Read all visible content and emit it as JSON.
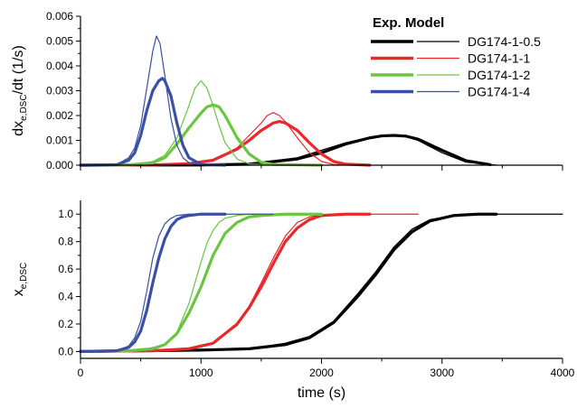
{
  "chart_data": [
    {
      "type": "line",
      "panel": "top",
      "ylabel": "dx",
      "ylabel_sub": "e,DSC",
      "ylabel_rest": "/dt (1/s)",
      "xlim": [
        0,
        4000
      ],
      "ylim": [
        0,
        0.006
      ],
      "yticks": [
        "0.000",
        "0.001",
        "0.002",
        "0.003",
        "0.004",
        "0.005",
        "0.006"
      ],
      "grid": false,
      "legend": {
        "placement": "top-right",
        "header_exp": "Exp.",
        "header_model": "Model",
        "entries": [
          "DG174-1-0.5",
          "DG174-1-1",
          "DG174-1-2",
          "DG174-1-4"
        ]
      },
      "series": [
        {
          "name": "DG174-1-0.5",
          "color": "#000000",
          "kind": "Exp.",
          "x": [
            0,
            1000,
            1400,
            1800,
            2000,
            2200,
            2400,
            2500,
            2600,
            2700,
            2800,
            3000,
            3200,
            3400
          ],
          "y": [
            0,
            1e-05,
            4e-05,
            0.00025,
            0.0005,
            0.00085,
            0.0011,
            0.00118,
            0.0012,
            0.00117,
            0.00105,
            0.0006,
            0.00018,
            2e-05
          ]
        },
        {
          "name": "DG174-1-0.5",
          "color": "#000000",
          "kind": "Model",
          "x": [
            0,
            1000,
            1400,
            1800,
            2000,
            2200,
            2400,
            2500,
            2600,
            2700,
            2800,
            3000,
            3200,
            3450
          ],
          "y": [
            0,
            1e-05,
            5e-05,
            0.0003,
            0.0006,
            0.0009,
            0.00113,
            0.00119,
            0.00121,
            0.00115,
            0.001,
            0.0005,
            0.00012,
            0
          ]
        },
        {
          "name": "DG174-1-1",
          "color": "#e8282b",
          "kind": "Exp.",
          "x": [
            0,
            600,
            900,
            1100,
            1300,
            1400,
            1500,
            1600,
            1650,
            1700,
            1800,
            1900,
            2000,
            2100,
            2200,
            2400
          ],
          "y": [
            0,
            1e-05,
            6e-05,
            0.0002,
            0.00065,
            0.001,
            0.0014,
            0.0017,
            0.00176,
            0.0017,
            0.0014,
            0.0009,
            0.00045,
            0.00015,
            4e-05,
            0
          ]
        },
        {
          "name": "DG174-1-1",
          "color": "#e8282b",
          "kind": "Model",
          "x": [
            0,
            600,
            900,
            1100,
            1300,
            1400,
            1500,
            1550,
            1600,
            1650,
            1700,
            1800,
            1900,
            2000,
            2100,
            2300
          ],
          "y": [
            0,
            1e-05,
            5e-05,
            0.0002,
            0.0007,
            0.0012,
            0.0017,
            0.002,
            0.00212,
            0.002,
            0.00175,
            0.0011,
            0.0005,
            0.00015,
            3e-05,
            0
          ]
        },
        {
          "name": "DG174-1-2",
          "color": "#6ac641",
          "kind": "Exp.",
          "x": [
            0,
            400,
            600,
            700,
            800,
            900,
            1000,
            1050,
            1100,
            1150,
            1200,
            1300,
            1400,
            1500,
            1600,
            2000
          ],
          "y": [
            0,
            1e-05,
            0.0001,
            0.0003,
            0.00085,
            0.0015,
            0.0021,
            0.00235,
            0.00243,
            0.00235,
            0.002,
            0.0011,
            0.00045,
            0.00012,
            3e-05,
            0
          ]
        },
        {
          "name": "DG174-1-2",
          "color": "#6ac641",
          "kind": "Model",
          "x": [
            0,
            500,
            600,
            700,
            800,
            900,
            950,
            1000,
            1050,
            1100,
            1150,
            1200,
            1300,
            1400,
            1600
          ],
          "y": [
            0,
            4e-05,
            0.00015,
            0.0004,
            0.0011,
            0.0024,
            0.0031,
            0.0034,
            0.0031,
            0.0024,
            0.0016,
            0.0009,
            0.00025,
            5e-05,
            0
          ]
        },
        {
          "name": "DG174-1-4",
          "color": "#3a4fa6",
          "kind": "Exp.",
          "x": [
            0,
            300,
            400,
            450,
            500,
            550,
            600,
            650,
            680,
            700,
            750,
            800,
            850,
            900,
            1000,
            1200
          ],
          "y": [
            0,
            2e-05,
            0.0002,
            0.0005,
            0.0012,
            0.0022,
            0.003,
            0.0034,
            0.0035,
            0.0034,
            0.0028,
            0.0017,
            0.0008,
            0.0003,
            3e-05,
            0
          ]
        },
        {
          "name": "DG174-1-4",
          "color": "#3a4fa6",
          "kind": "Model",
          "x": [
            0,
            300,
            400,
            450,
            500,
            550,
            600,
            630,
            660,
            700,
            750,
            800,
            850,
            900,
            1000,
            1200
          ],
          "y": [
            0,
            2e-05,
            0.0003,
            0.0007,
            0.0016,
            0.0031,
            0.0046,
            0.0052,
            0.0049,
            0.0036,
            0.0019,
            0.0008,
            0.0003,
            0.0001,
            1e-05,
            0
          ]
        }
      ]
    },
    {
      "type": "line",
      "panel": "bottom",
      "xlabel": "time (s)",
      "ylabel": "x",
      "ylabel_sub": "e,DSC",
      "xlim": [
        0,
        4000
      ],
      "ylim": [
        -0.05,
        1.1
      ],
      "xticks": [
        "0",
        "1000",
        "2000",
        "3000",
        "4000"
      ],
      "yticks": [
        "0.0",
        "0.2",
        "0.4",
        "0.6",
        "0.8",
        "1.0"
      ],
      "grid": false,
      "series": [
        {
          "name": "DG174-1-0.5",
          "color": "#000000",
          "kind": "Exp.",
          "x": [
            0,
            1000,
            1400,
            1700,
            1900,
            2100,
            2300,
            2450,
            2600,
            2750,
            2900,
            3100,
            3300,
            3450
          ],
          "y": [
            0,
            0.01,
            0.02,
            0.05,
            0.1,
            0.21,
            0.4,
            0.56,
            0.74,
            0.87,
            0.95,
            0.99,
            1,
            1
          ]
        },
        {
          "name": "DG174-1-0.5",
          "color": "#000000",
          "kind": "Model",
          "x": [
            0,
            1000,
            1400,
            1700,
            1900,
            2100,
            2300,
            2450,
            2600,
            2750,
            2900,
            3100,
            3300,
            3500,
            4000
          ],
          "y": [
            0,
            0.01,
            0.02,
            0.06,
            0.11,
            0.22,
            0.42,
            0.58,
            0.76,
            0.89,
            0.96,
            0.99,
            1,
            1,
            1
          ]
        },
        {
          "name": "DG174-1-1",
          "color": "#e8282b",
          "kind": "Exp.",
          "x": [
            0,
            600,
            900,
            1100,
            1300,
            1400,
            1500,
            1600,
            1700,
            1800,
            1900,
            2000,
            2200,
            2400
          ],
          "y": [
            0,
            0.005,
            0.02,
            0.06,
            0.2,
            0.32,
            0.47,
            0.64,
            0.8,
            0.9,
            0.96,
            0.99,
            1,
            1
          ]
        },
        {
          "name": "DG174-1-1",
          "color": "#e8282b",
          "kind": "Model",
          "x": [
            0,
            600,
            900,
            1100,
            1300,
            1400,
            1500,
            1600,
            1700,
            1800,
            1900,
            2000,
            2200,
            2800
          ],
          "y": [
            0,
            0.005,
            0.02,
            0.06,
            0.19,
            0.33,
            0.5,
            0.68,
            0.84,
            0.94,
            0.98,
            0.995,
            1,
            1
          ]
        },
        {
          "name": "DG174-1-2",
          "color": "#6ac641",
          "kind": "Exp.",
          "x": [
            0,
            400,
            600,
            700,
            800,
            900,
            1000,
            1100,
            1200,
            1300,
            1400,
            1500,
            1700,
            2000
          ],
          "y": [
            0,
            0.005,
            0.02,
            0.05,
            0.13,
            0.28,
            0.47,
            0.7,
            0.86,
            0.94,
            0.98,
            0.99,
            1,
            1
          ]
        },
        {
          "name": "DG174-1-2",
          "color": "#6ac641",
          "kind": "Model",
          "x": [
            0,
            500,
            700,
            800,
            900,
            950,
            1000,
            1050,
            1100,
            1150,
            1200,
            1300,
            1400,
            1600
          ],
          "y": [
            0,
            0.01,
            0.05,
            0.14,
            0.35,
            0.5,
            0.65,
            0.79,
            0.88,
            0.94,
            0.97,
            0.99,
            1,
            1
          ]
        },
        {
          "name": "DG174-1-4",
          "color": "#3a4fa6",
          "kind": "Exp.",
          "x": [
            0,
            300,
            400,
            450,
            500,
            550,
            600,
            650,
            700,
            750,
            800,
            850,
            900,
            1000,
            1200
          ],
          "y": [
            0,
            0.005,
            0.03,
            0.07,
            0.15,
            0.3,
            0.5,
            0.68,
            0.82,
            0.91,
            0.96,
            0.98,
            0.99,
            1,
            1
          ]
        },
        {
          "name": "DG174-1-4",
          "color": "#3a4fa6",
          "kind": "Model",
          "x": [
            0,
            300,
            400,
            450,
            500,
            550,
            600,
            650,
            700,
            750,
            800,
            900,
            1000,
            1200,
            1600
          ],
          "y": [
            0,
            0.005,
            0.04,
            0.1,
            0.22,
            0.44,
            0.68,
            0.84,
            0.93,
            0.97,
            0.99,
            1,
            1,
            1,
            1
          ]
        }
      ]
    }
  ]
}
